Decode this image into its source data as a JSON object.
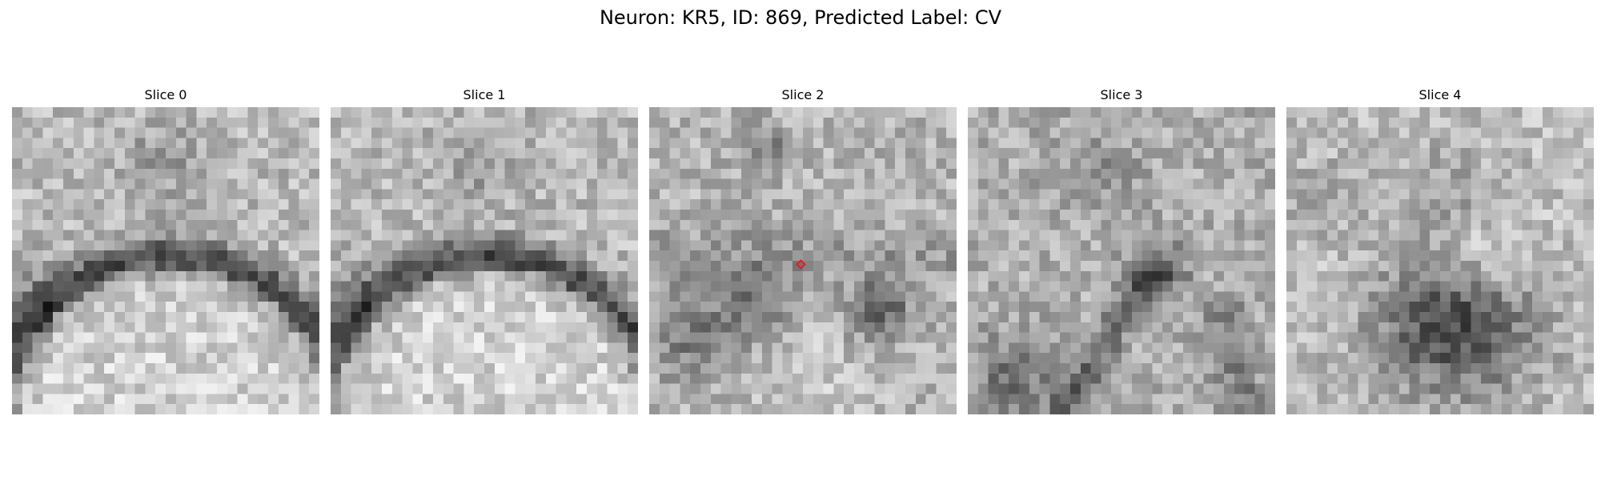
{
  "figure": {
    "title": "Neuron: KR5, ID: 869, Predicted Label: CV"
  },
  "panels": [
    {
      "title": "Slice 0",
      "pattern": "upper-membrane-arc",
      "has_marker": false
    },
    {
      "title": "Slice 1",
      "pattern": "upper-membrane-arc",
      "has_marker": false
    },
    {
      "title": "Slice 2",
      "pattern": "split-membrane",
      "has_marker": true
    },
    {
      "title": "Slice 3",
      "pattern": "converging-membranes",
      "has_marker": false
    },
    {
      "title": "Slice 4",
      "pattern": "dark-blob",
      "has_marker": false
    }
  ],
  "marker": {
    "shape": "diamond",
    "color": "#e8191e"
  }
}
